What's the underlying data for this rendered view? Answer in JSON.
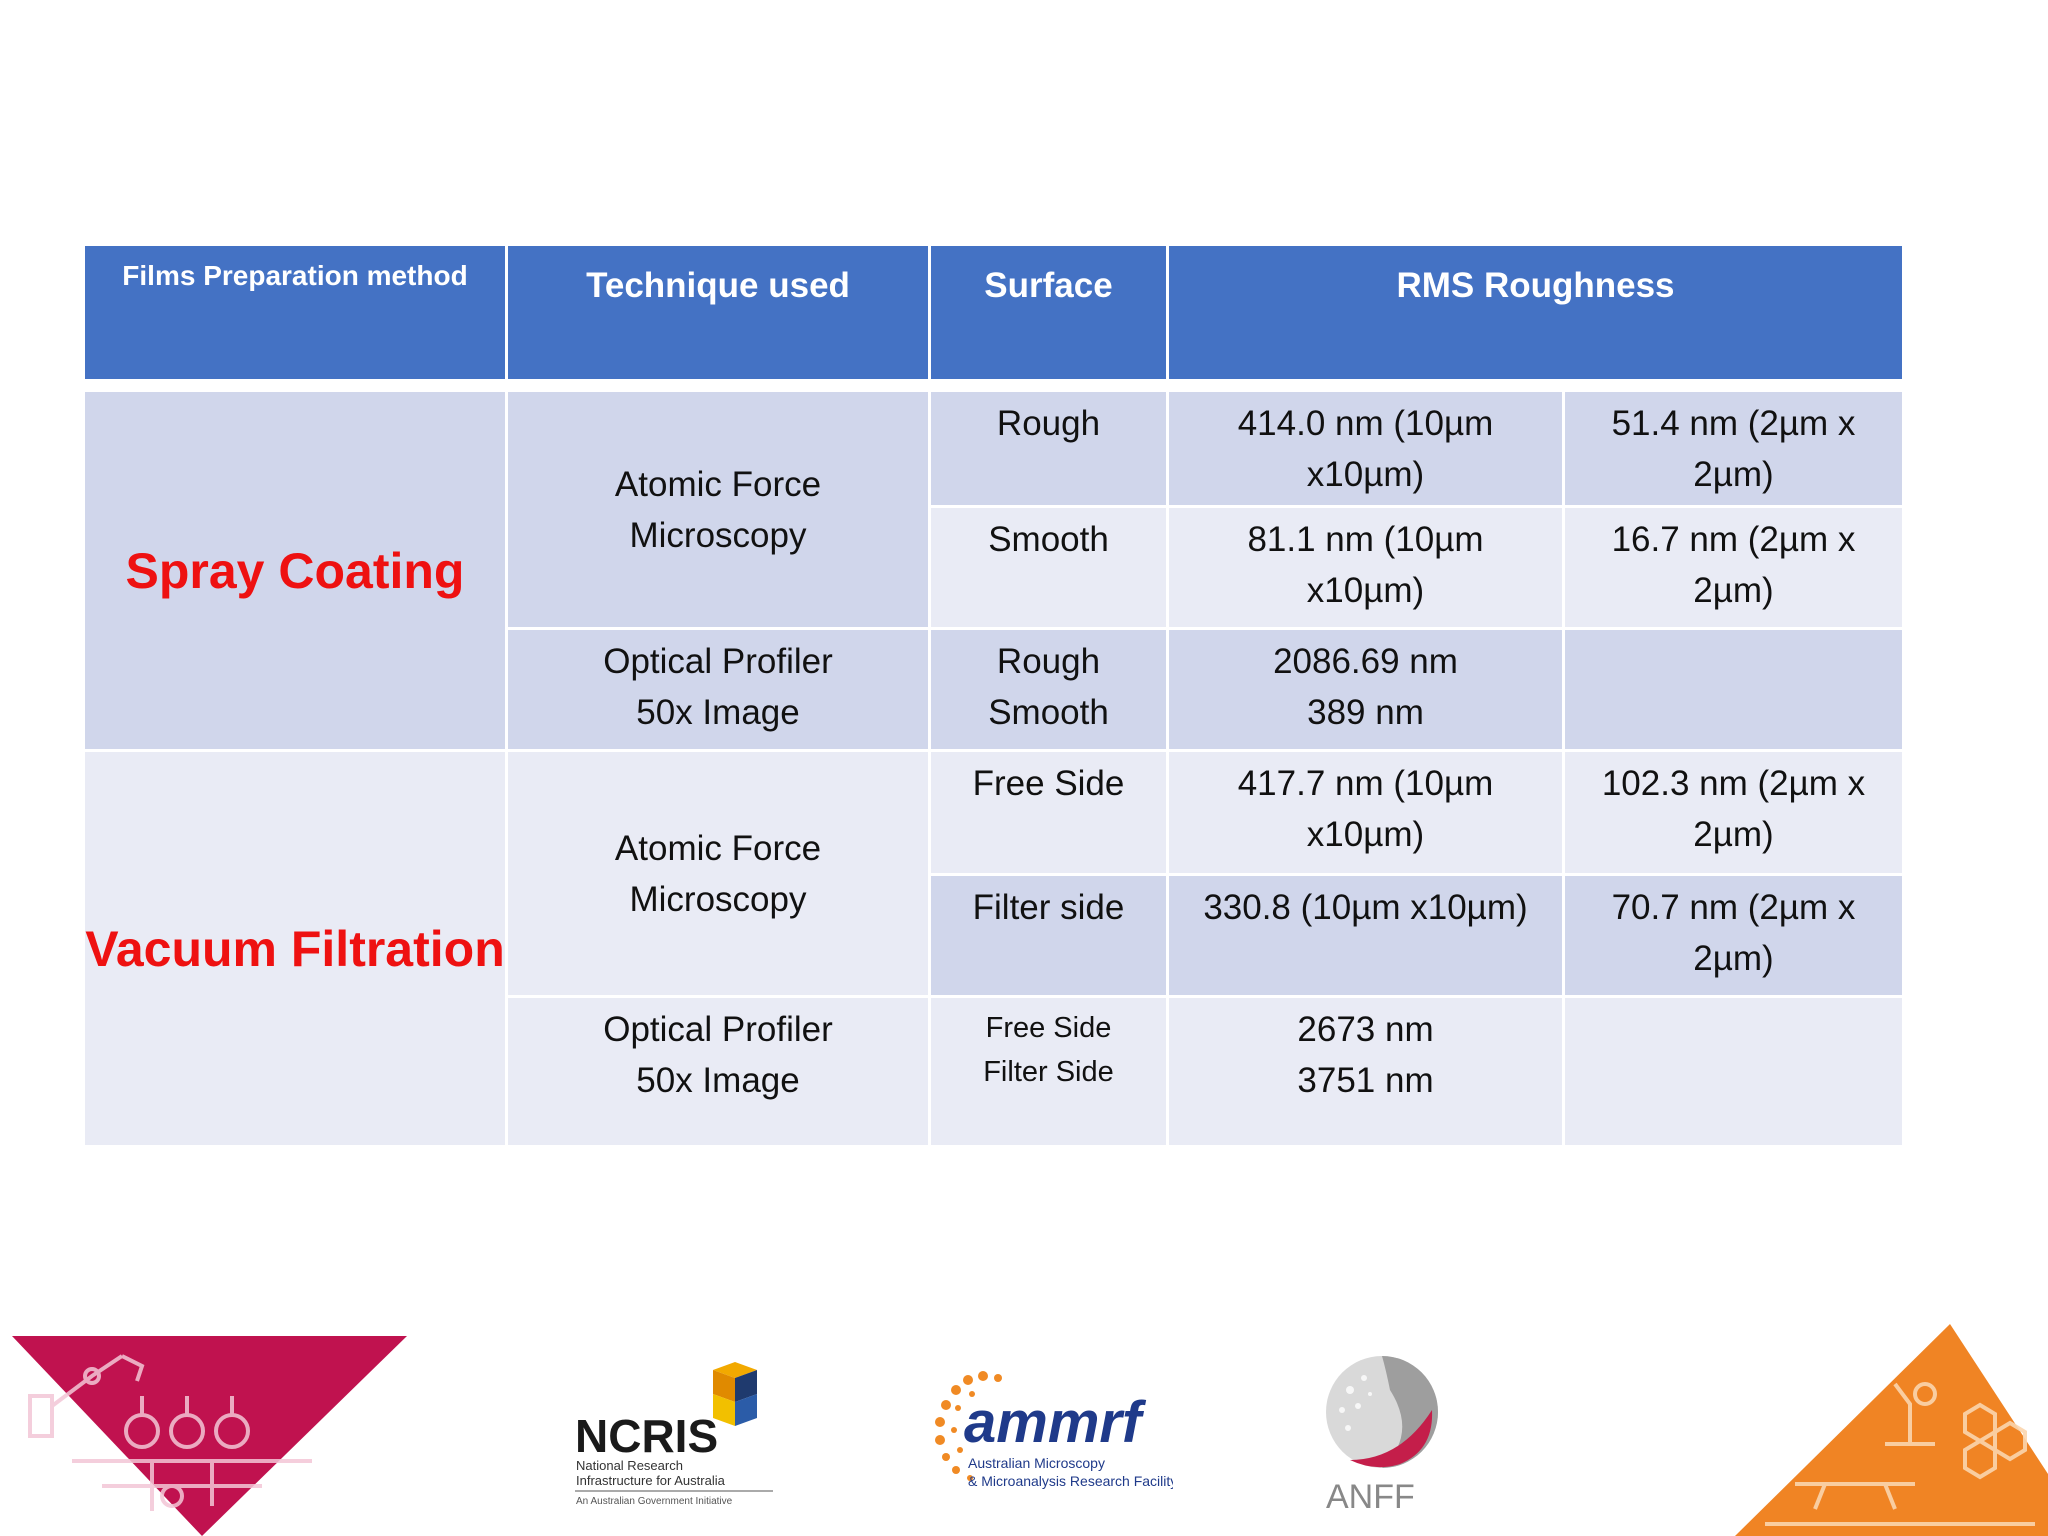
{
  "headers": {
    "method": "Films Preparation method",
    "technique": "Technique used",
    "surface": "Surface",
    "rms": "RMS Roughness"
  },
  "spray": {
    "method": "Spray Coating",
    "afm_l1": "Atomic Force",
    "afm_l2": "Microscopy",
    "rough_surface": "Rough",
    "rough_v1_l1": "414.0 nm (10µm",
    "rough_v1_l2": "x10µm)",
    "rough_v2_l1": "51.4 nm (2µm x",
    "rough_v2_l2": "2µm)",
    "smooth_surface": "Smooth",
    "smooth_v1_l1": "81.1 nm (10µm",
    "smooth_v1_l2": "x10µm)",
    "smooth_v2_l1": "16.7 nm (2µm x",
    "smooth_v2_l2": "2µm)",
    "op_l1": "Optical Profiler",
    "op_l2": "50x Image",
    "op_surface_l1": "Rough",
    "op_surface_l2": "Smooth",
    "op_v_l1": "2086.69 nm",
    "op_v_l2": "389 nm"
  },
  "vacuum": {
    "method": "Vacuum Filtration",
    "afm_l1": "Atomic Force",
    "afm_l2": "Microscopy",
    "free_surface": "Free Side",
    "free_v1_l1": "417.7 nm (10µm",
    "free_v1_l2": "x10µm)",
    "free_v2_l1": "102.3 nm (2µm x",
    "free_v2_l2": "2µm)",
    "filter_surface": "Filter side",
    "filter_v1": "330.8 (10µm x10µm)",
    "filter_v2_l1": "70.7 nm (2µm x",
    "filter_v2_l2": "2µm)",
    "op_l1": "Optical Profiler",
    "op_l2": "50x Image",
    "op_surface_l1": "Free Side",
    "op_surface_l2": "Filter Side",
    "op_v_l1": "2673 nm",
    "op_v_l2": "3751 nm"
  },
  "logos": {
    "ncris": "NCRIS",
    "ncris_sub1": "National Research",
    "ncris_sub2": "Infrastructure for Australia",
    "ncris_sub3": "An Australian Government Initiative",
    "ammrf": "ammrf",
    "ammrf_sub1": "Australian Microscopy",
    "ammrf_sub2": "& Microanalysis Research Facility",
    "anff": "ANFF"
  },
  "colors": {
    "header": "#4472c4",
    "band_dark": "#d0d6eb",
    "band_light": "#e9ebf5",
    "method_text": "#ee1111",
    "left_corner": "#c0124f",
    "right_corner": "#f08424"
  }
}
